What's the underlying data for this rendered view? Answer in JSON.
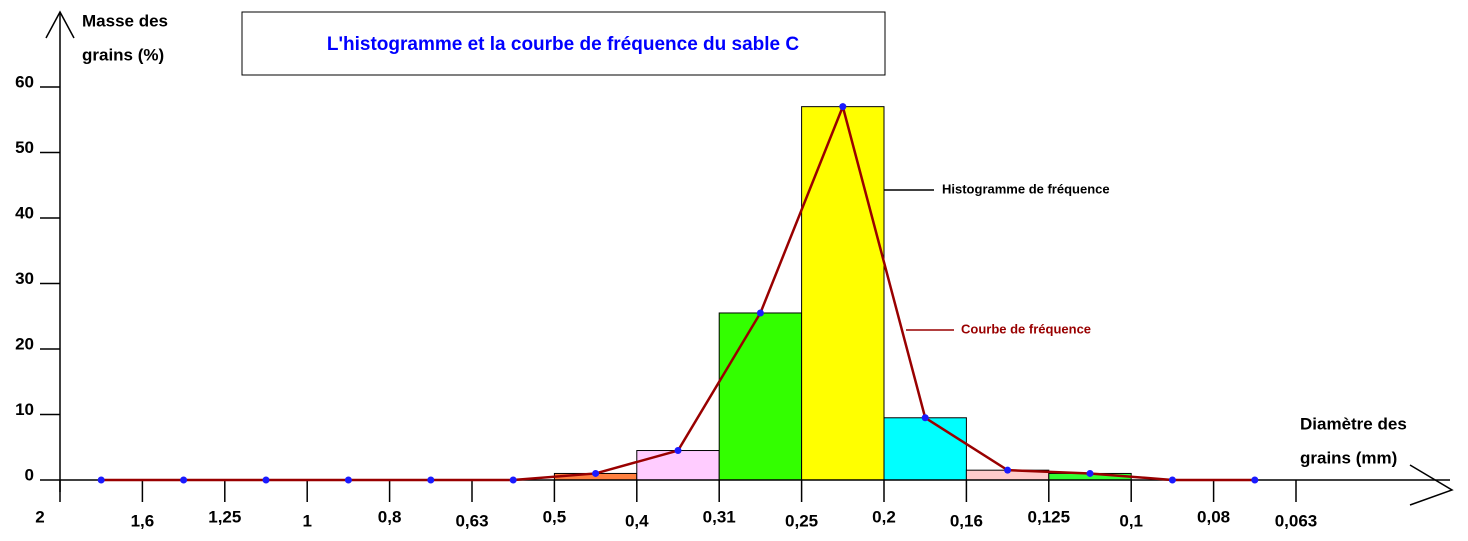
{
  "chart_data": {
    "type": "histogram",
    "title": "L'histogramme  et la courbe de fréquence du sable C",
    "y_label": [
      "Masse des",
      "grains (%)"
    ],
    "x_label": [
      "Diamètre des",
      "grains (mm)"
    ],
    "bins": [
      "2",
      "1,6",
      "1,25",
      "1",
      "0,8",
      "0,63",
      "0,5",
      "0,4",
      "0,31",
      "0,25",
      "0,2",
      "0,16",
      "0,125",
      "0,1",
      "0,08",
      "0,063"
    ],
    "values": [
      0,
      0,
      0,
      0,
      0,
      0,
      1,
      4.5,
      25.5,
      57,
      9.5,
      1.5,
      1,
      0,
      0
    ],
    "bar_colors": [
      "#ffffff",
      "#ffffff",
      "#ffffff",
      "#ffffff",
      "#ffffff",
      "#ffffff",
      "#ff8040",
      "#ffccff",
      "#33ff00",
      "#ffff00",
      "#00ffff",
      "#ffcccc",
      "#33ff33",
      "#ffffff",
      "#ffffff"
    ],
    "histogram_label": "Histogramme de fréquence",
    "curve": {
      "name": "Courbe de fréquence",
      "color": "#990000",
      "marker_color": "#1a1aff"
    },
    "ylim": [
      0,
      60
    ],
    "yticks": [
      0,
      10,
      20,
      30,
      40,
      50,
      60
    ]
  }
}
